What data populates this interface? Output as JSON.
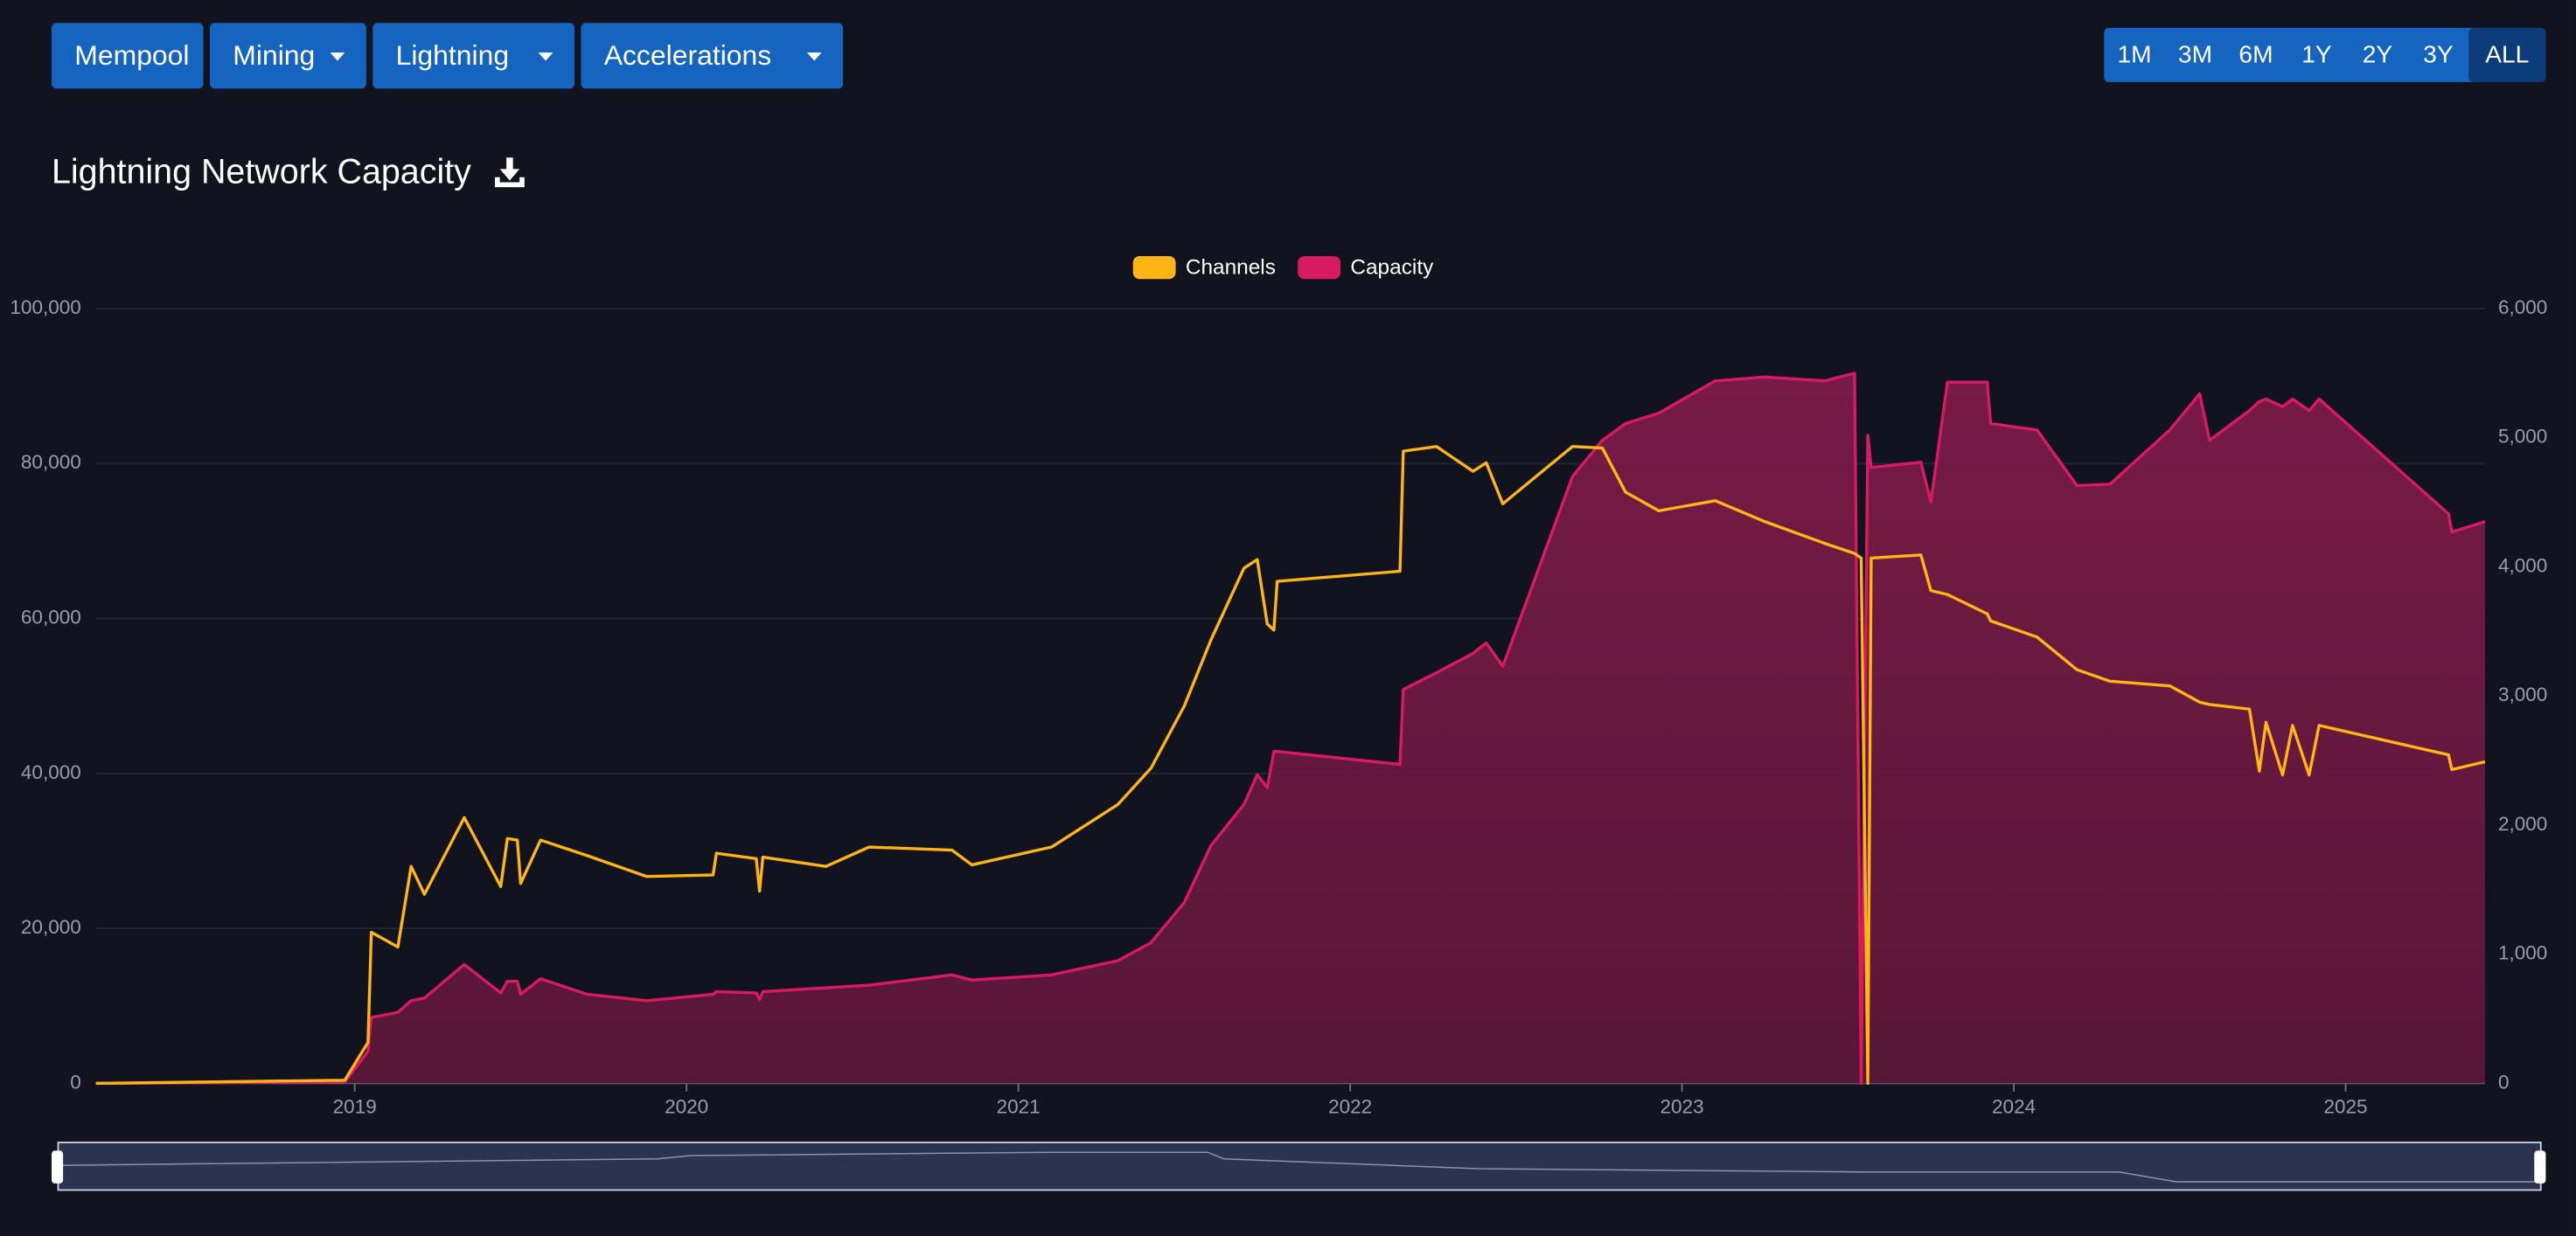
{
  "nav": {
    "items": [
      "Mempool",
      "Mining",
      "Lightning",
      "Accelerations"
    ]
  },
  "periods": [
    "1M",
    "3M",
    "6M",
    "1Y",
    "2Y",
    "3Y",
    "ALL"
  ],
  "chart_data": {
    "type": "line",
    "title": "Lightning Network Capacity",
    "x": [
      2018.22,
      2018.97,
      2019.04,
      2019.05,
      2019.13,
      2019.17,
      2019.21,
      2019.33,
      2019.44,
      2019.46,
      2019.49,
      2019.5,
      2019.56,
      2019.7,
      2019.88,
      2020.08,
      2020.09,
      2020.21,
      2020.22,
      2020.23,
      2020.42,
      2020.55,
      2020.8,
      2020.86,
      2021.1,
      2021.3,
      2021.4,
      2021.5,
      2021.58,
      2021.68,
      2021.72,
      2021.75,
      2021.77,
      2021.78,
      2022.15,
      2022.16,
      2022.26,
      2022.37,
      2022.41,
      2022.46,
      2022.67,
      2022.76,
      2022.83,
      2022.93,
      2023.1,
      2023.25,
      2023.43,
      2023.52,
      2023.54,
      2023.56,
      2023.57,
      2023.72,
      2023.75,
      2023.8,
      2023.92,
      2023.93,
      2024.07,
      2024.19,
      2024.29,
      2024.47,
      2024.56,
      2024.59,
      2024.71,
      2024.74,
      2024.76,
      2024.81,
      2024.84,
      2024.89,
      2024.92,
      2025.31,
      2025.32,
      2025.42
    ],
    "series": [
      {
        "name": "Channels",
        "color": "#ffb515",
        "values": [
          0,
          400,
          5300,
          19500,
          17600,
          28000,
          24400,
          34300,
          25400,
          31600,
          31400,
          25800,
          31400,
          29400,
          26700,
          26900,
          29700,
          29000,
          24800,
          29200,
          28000,
          30500,
          30100,
          28200,
          30500,
          36000,
          40700,
          48700,
          57200,
          66500,
          67600,
          59300,
          58500,
          64800,
          66100,
          81600,
          82200,
          79000,
          80100,
          74800,
          82200,
          82000,
          76300,
          73900,
          75200,
          72500,
          69700,
          68400,
          67800,
          0,
          67800,
          68200,
          63600,
          63100,
          60600,
          59700,
          57600,
          53400,
          51900,
          51300,
          49200,
          48900,
          48300,
          40300,
          46600,
          39800,
          46200,
          39800,
          46200,
          42400,
          40500,
          41500
        ]
      },
      {
        "name": "Capacity",
        "color": "#d81b60",
        "axis": "y2",
        "area": true,
        "values": [
          0,
          10,
          250,
          510,
          550,
          640,
          660,
          920,
          700,
          790,
          790,
          690,
          810,
          690,
          640,
          690,
          710,
          700,
          650,
          710,
          740,
          760,
          840,
          800,
          840,
          950,
          1090,
          1400,
          1840,
          2160,
          2390,
          2290,
          2570,
          2570,
          2470,
          3050,
          3180,
          3330,
          3410,
          3230,
          4700,
          4980,
          5110,
          5190,
          5440,
          5470,
          5440,
          5500,
          0,
          5020,
          4770,
          4810,
          4500,
          5430,
          5430,
          5110,
          5060,
          4630,
          4640,
          5060,
          5340,
          4980,
          5210,
          5280,
          5300,
          5240,
          5300,
          5210,
          5300,
          4410,
          4270,
          4350
        ]
      }
    ],
    "xlim": [
      2018.22,
      2025.42
    ],
    "xticks": [
      2019,
      2020,
      2021,
      2022,
      2023,
      2024,
      2025
    ],
    "ylim": [
      0,
      100000
    ],
    "yticks": [
      0,
      {
        "value": 20000,
        "label": "20,000"
      },
      {
        "value": 40000,
        "label": "40,000"
      },
      {
        "value": 60000,
        "label": "60,000"
      },
      {
        "value": 80000,
        "label": "80,000"
      },
      {
        "value": 100000,
        "label": "100,000"
      }
    ],
    "y2lim": [
      0,
      6000
    ],
    "y2ticks": [
      0,
      {
        "value": 1000,
        "label": "1,000"
      },
      {
        "value": 2000,
        "label": "2,000"
      },
      {
        "value": 3000,
        "label": "3,000"
      },
      {
        "value": 4000,
        "label": "4,000"
      },
      {
        "value": 5000,
        "label": "5,000"
      },
      {
        "value": 6000,
        "label": "6,000"
      }
    ],
    "grid": true,
    "legend": "top"
  }
}
